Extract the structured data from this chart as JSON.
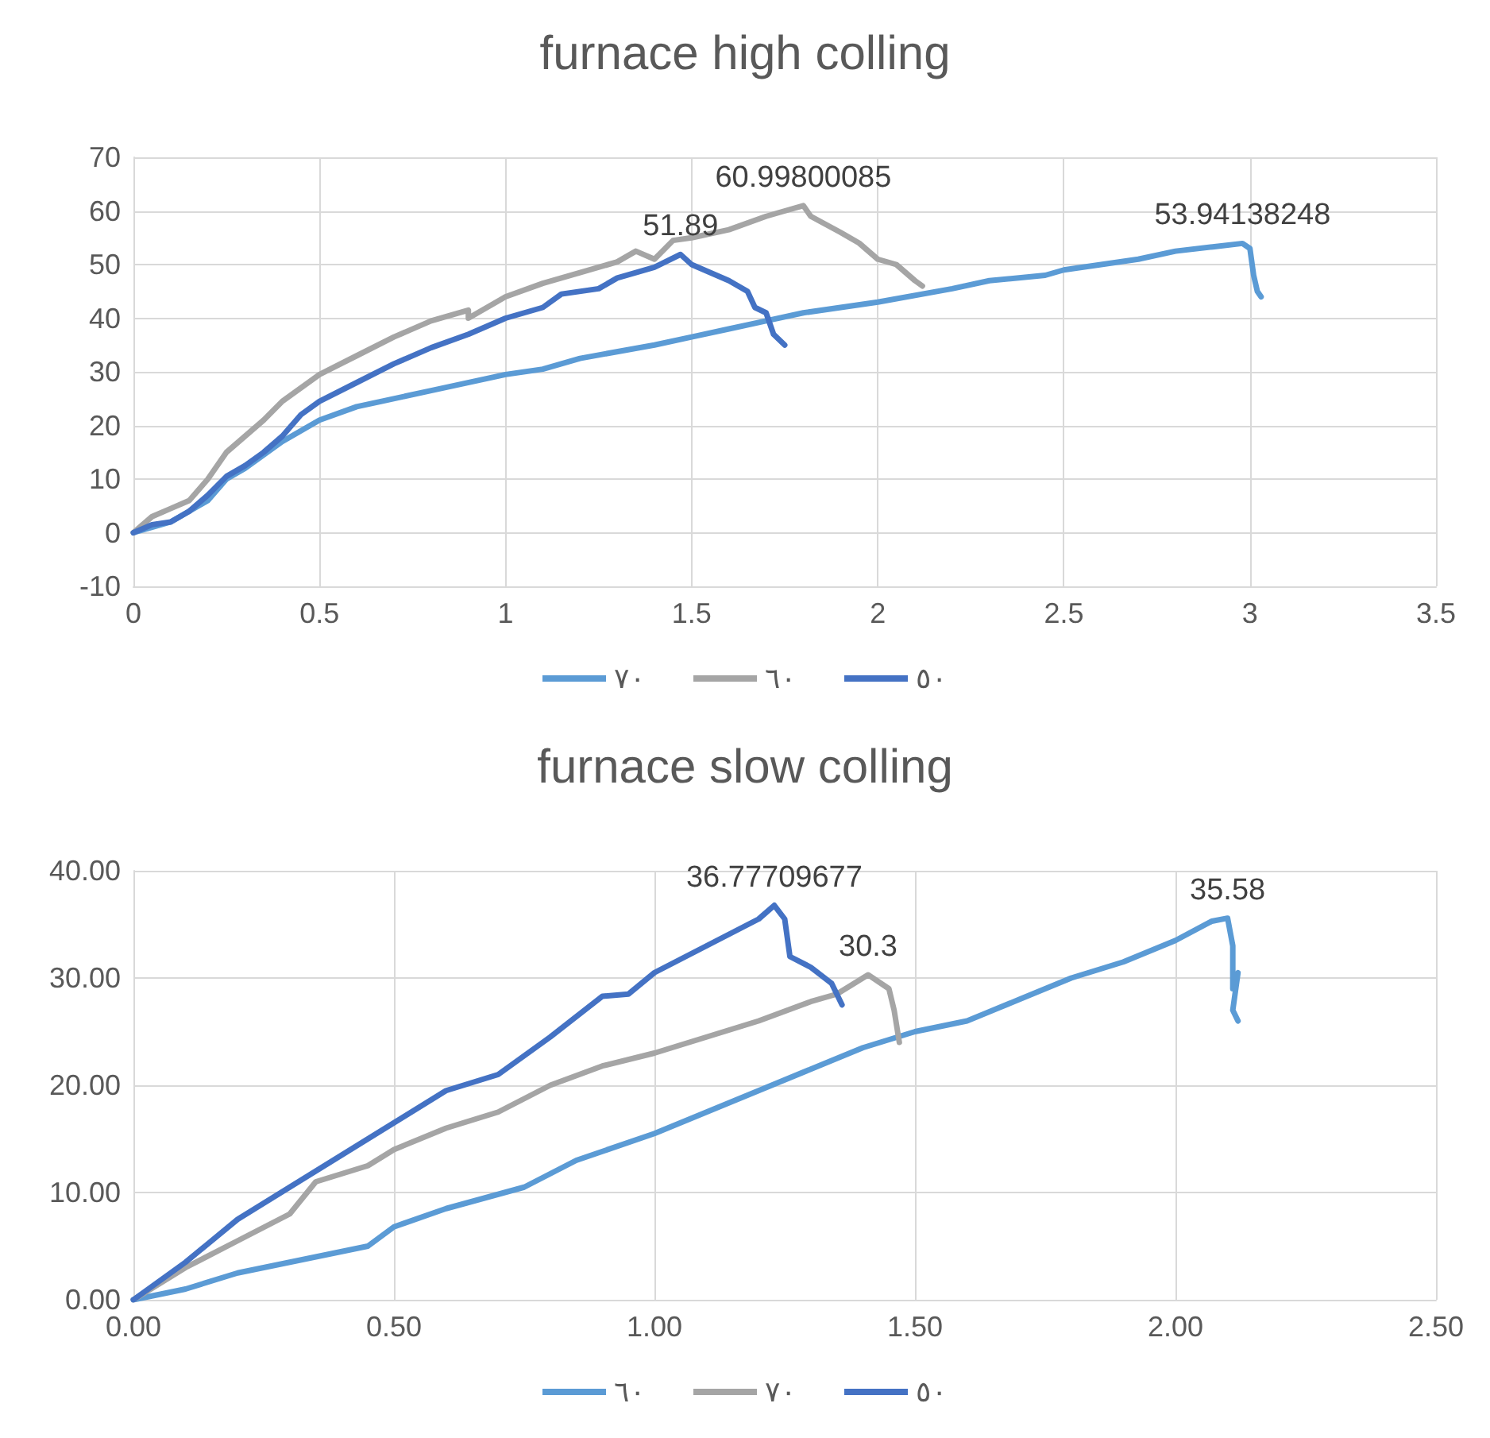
{
  "chart_data": [
    {
      "type": "line",
      "title": "furnace high colling",
      "xlim": [
        0,
        3.5
      ],
      "xticks": [
        0,
        0.5,
        1,
        1.5,
        2,
        2.5,
        3,
        3.5
      ],
      "ylim": [
        -10,
        70
      ],
      "yticks": [
        -10,
        0,
        10,
        20,
        30,
        40,
        50,
        60,
        70
      ],
      "grid": true,
      "legend": "bottom",
      "marker": "none",
      "line_style": "solid",
      "annotations": [
        {
          "text": "53.94138248",
          "x": 2.98,
          "y": 53.94138248
        },
        {
          "text": "60.99800085",
          "x": 1.8,
          "y": 60.99800085
        },
        {
          "text": "51.89",
          "x": 1.47,
          "y": 51.89
        }
      ],
      "series": [
        {
          "name": "٧٠",
          "color": "#5b9bd5",
          "x": [
            0,
            0.1,
            0.2,
            0.25,
            0.3,
            0.4,
            0.5,
            0.6,
            0.8,
            1.0,
            1.1,
            1.2,
            1.4,
            1.5,
            1.6,
            1.7,
            1.8,
            2.0,
            2.2,
            2.3,
            2.45,
            2.5,
            2.7,
            2.8,
            2.9,
            2.98,
            3.0,
            3.01,
            3.02,
            3.03
          ],
          "values": [
            0,
            2,
            6,
            10,
            12,
            17,
            21,
            23.5,
            26.5,
            29.5,
            30.5,
            32.5,
            35,
            36.5,
            38,
            39.5,
            41,
            43,
            45.5,
            47,
            48,
            49,
            51,
            52.5,
            53.3,
            53.94138248,
            53,
            48,
            45,
            44
          ]
        },
        {
          "name": "٦٠",
          "color": "#a5a5a5",
          "x": [
            0,
            0.05,
            0.1,
            0.15,
            0.2,
            0.25,
            0.3,
            0.35,
            0.4,
            0.5,
            0.6,
            0.7,
            0.8,
            0.9,
            0.9,
            1.0,
            1.1,
            1.2,
            1.3,
            1.35,
            1.4,
            1.45,
            1.5,
            1.6,
            1.7,
            1.75,
            1.8,
            1.82,
            1.9,
            1.95,
            2.0,
            2.05,
            2.1,
            2.12
          ],
          "values": [
            0,
            3,
            4.5,
            6,
            10,
            15,
            18,
            21,
            24.5,
            29.5,
            33,
            36.5,
            39.5,
            41.5,
            40,
            44,
            46.5,
            48.5,
            50.5,
            52.5,
            51,
            54.5,
            55,
            56.5,
            59,
            60,
            60.99800085,
            59,
            56,
            54,
            51,
            50,
            47,
            46
          ]
        },
        {
          "name": "٥٠",
          "color": "#4472c4",
          "x": [
            0,
            0.05,
            0.1,
            0.15,
            0.2,
            0.25,
            0.3,
            0.35,
            0.4,
            0.45,
            0.5,
            0.6,
            0.7,
            0.8,
            0.9,
            1.0,
            1.1,
            1.15,
            1.25,
            1.3,
            1.4,
            1.47,
            1.5,
            1.6,
            1.65,
            1.67,
            1.7,
            1.72,
            1.75
          ],
          "values": [
            0,
            1.5,
            2,
            4,
            7,
            10.5,
            12.5,
            15,
            18,
            22,
            24.5,
            28,
            31.5,
            34.5,
            37,
            40,
            42,
            44.5,
            45.5,
            47.5,
            49.5,
            51.89,
            50,
            47,
            45,
            42,
            41,
            37,
            35
          ]
        }
      ]
    },
    {
      "type": "line",
      "title": "furnace slow colling",
      "xlim": [
        0,
        2.5
      ],
      "xticks": [
        {
          "value": 0,
          "label": "0.00"
        },
        {
          "value": 0.5,
          "label": "0.50"
        },
        {
          "value": 1,
          "label": "1.00"
        },
        {
          "value": 1.5,
          "label": "1.50"
        },
        {
          "value": 2,
          "label": "2.00"
        },
        {
          "value": 2.5,
          "label": "2.50"
        }
      ],
      "ylim": [
        0,
        40
      ],
      "yticks": [
        {
          "value": 0,
          "label": "0.00"
        },
        {
          "value": 10,
          "label": "10.00"
        },
        {
          "value": 20,
          "label": "20.00"
        },
        {
          "value": 30,
          "label": "30.00"
        },
        {
          "value": 40,
          "label": "40.00"
        }
      ],
      "grid": true,
      "legend": "bottom",
      "marker": "none",
      "line_style": "solid",
      "annotations": [
        {
          "text": "36.77709677",
          "x": 1.23,
          "y": 36.77709677
        },
        {
          "text": "30.3",
          "x": 1.41,
          "y": 30.3
        },
        {
          "text": "35.58",
          "x": 2.1,
          "y": 35.58
        }
      ],
      "series": [
        {
          "name": "٦٠",
          "color": "#5b9bd5",
          "x": [
            0,
            0.1,
            0.2,
            0.3,
            0.45,
            0.5,
            0.6,
            0.75,
            0.85,
            1.0,
            1.1,
            1.2,
            1.3,
            1.4,
            1.5,
            1.6,
            1.7,
            1.8,
            1.9,
            2.0,
            2.07,
            2.1,
            2.11,
            2.11,
            2.12,
            2.11,
            2.12
          ],
          "values": [
            0,
            1,
            2.5,
            3.5,
            5,
            6.8,
            8.5,
            10.5,
            13,
            15.5,
            17.5,
            19.5,
            21.5,
            23.5,
            25,
            26,
            28,
            30,
            31.5,
            33.5,
            35.3,
            35.58,
            33,
            29,
            30.5,
            27,
            26
          ]
        },
        {
          "name": "٧٠",
          "color": "#a5a5a5",
          "x": [
            0,
            0.1,
            0.2,
            0.3,
            0.35,
            0.45,
            0.5,
            0.6,
            0.7,
            0.8,
            0.9,
            1.0,
            1.1,
            1.2,
            1.3,
            1.35,
            1.41,
            1.45,
            1.46,
            1.47
          ],
          "values": [
            0,
            3,
            5.5,
            8,
            11,
            12.5,
            14,
            16,
            17.5,
            20,
            21.8,
            23,
            24.5,
            26,
            27.8,
            28.5,
            30.3,
            29,
            27,
            24
          ]
        },
        {
          "name": "٥٠",
          "color": "#4472c4",
          "x": [
            0,
            0.1,
            0.2,
            0.3,
            0.4,
            0.5,
            0.6,
            0.7,
            0.8,
            0.9,
            0.95,
            1.0,
            1.1,
            1.2,
            1.23,
            1.25,
            1.26,
            1.3,
            1.34,
            1.36
          ],
          "values": [
            0,
            3.5,
            7.5,
            10.5,
            13.5,
            16.5,
            19.5,
            21,
            24.5,
            28.3,
            28.5,
            30.5,
            33,
            35.5,
            36.77709677,
            35.5,
            32,
            31,
            29.5,
            27.5
          ]
        }
      ]
    }
  ]
}
